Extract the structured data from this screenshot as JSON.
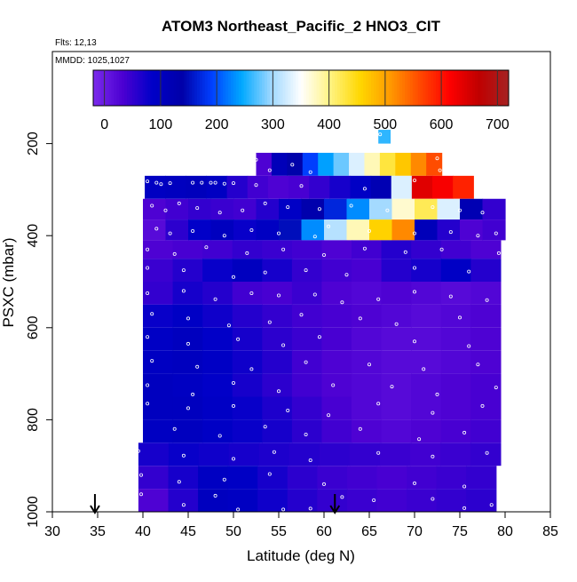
{
  "chart_data": {
    "type": "heatmap",
    "title": "ATOM3 Northeast_Pacific_2 HNO3_CIT",
    "subtitle_flights": "Flts: 12,13",
    "subtitle_dates": "MMDD: 1025,1027",
    "xlabel": "Latitude (deg N)",
    "ylabel": "PSXC (mbar)",
    "xlim": [
      30,
      85
    ],
    "ylim": [
      1000,
      0
    ],
    "x_ticks": [
      "30",
      "35",
      "40",
      "45",
      "50",
      "55",
      "60",
      "65",
      "70",
      "75",
      "80",
      "85"
    ],
    "y_ticks": [
      "200",
      "400",
      "600",
      "800",
      "1000"
    ],
    "colorbar": {
      "range": [
        -20,
        720
      ],
      "tick_labels": [
        "0",
        "100",
        "200",
        "300",
        "400",
        "500",
        "600",
        "700"
      ],
      "stops": [
        "#7B2BEB",
        "#4B00D2",
        "#0000C8",
        "#0000A8",
        "#0040FF",
        "#00A8FF",
        "#9FD8FF",
        "#FFFFFF",
        "#FFF380",
        "#FFD700",
        "#FF9A00",
        "#FF4A00",
        "#FF0000",
        "#C00000",
        "#A52222"
      ]
    },
    "arrows_latitude": [
      34.7,
      61.2
    ],
    "layers": [
      {
        "p_top": 170,
        "p_bot": 200,
        "x0": 66.0,
        "x1": 67.3,
        "values": [
          260
        ]
      },
      {
        "p_top": 220,
        "p_bot": 270,
        "x0": 52.5,
        "x1": 73.0,
        "values": [
          30,
          110,
          140,
          190,
          240,
          280,
          330,
          380,
          430,
          470,
          520,
          560
        ]
      },
      {
        "p_top": 270,
        "p_bot": 320,
        "x0": 40.2,
        "x1": 76.5,
        "values": [
          95,
          100,
          105,
          95,
          60,
          40,
          30,
          35,
          50,
          70,
          90,
          120,
          330,
          640,
          620,
          590
        ]
      },
      {
        "p_top": 320,
        "p_bot": 365,
        "x0": 40.0,
        "x1": 80.0,
        "values": [
          30,
          40,
          50,
          45,
          40,
          60,
          90,
          130,
          170,
          230,
          300,
          370,
          420,
          330,
          120,
          50
        ]
      },
      {
        "p_top": 365,
        "p_bot": 410,
        "x0": 40.0,
        "x1": 80.0,
        "values": [
          20,
          55,
          85,
          100,
          80,
          95,
          150,
          230,
          310,
          380,
          460,
          520,
          110,
          60,
          30,
          40
        ]
      },
      {
        "p_top": 410,
        "p_bot": 450,
        "x0": 40.0,
        "x1": 79.5,
        "values": [
          30,
          35,
          40,
          50,
          45,
          40,
          30,
          40,
          60,
          50,
          40,
          30
        ]
      },
      {
        "p_top": 450,
        "p_bot": 500,
        "x0": 40.0,
        "x1": 79.5,
        "values": [
          45,
          60,
          80,
          100,
          70,
          50,
          40,
          35,
          60,
          70,
          90,
          60
        ]
      },
      {
        "p_top": 500,
        "p_bot": 550,
        "x0": 40.0,
        "x1": 79.5,
        "values": [
          50,
          70,
          60,
          40,
          35,
          45,
          30,
          25,
          30,
          25,
          20,
          25
        ]
      },
      {
        "p_top": 550,
        "p_bot": 600,
        "x0": 40.0,
        "x1": 79.5,
        "values": [
          80,
          90,
          75,
          60,
          50,
          40,
          35,
          30,
          25,
          20,
          25,
          30
        ]
      },
      {
        "p_top": 600,
        "p_bot": 650,
        "x0": 40.0,
        "x1": 79.5,
        "values": [
          90,
          100,
          85,
          70,
          55,
          45,
          35,
          25,
          20,
          20,
          25,
          30
        ]
      },
      {
        "p_top": 650,
        "p_bot": 700,
        "x0": 40.0,
        "x1": 79.5,
        "values": [
          95,
          100,
          90,
          75,
          60,
          40,
          30,
          25,
          20,
          20,
          25,
          30
        ]
      },
      {
        "p_top": 700,
        "p_bot": 750,
        "x0": 40.0,
        "x1": 79.5,
        "values": [
          100,
          95,
          85,
          70,
          55,
          40,
          30,
          25,
          20,
          25,
          30,
          35
        ]
      },
      {
        "p_top": 750,
        "p_bot": 800,
        "x0": 40.0,
        "x1": 79.5,
        "values": [
          100,
          100,
          90,
          80,
          65,
          50,
          35,
          25,
          20,
          25,
          30,
          35
        ]
      },
      {
        "p_top": 800,
        "p_bot": 850,
        "x0": 40.0,
        "x1": 79.5,
        "values": [
          95,
          100,
          90,
          80,
          70,
          55,
          40,
          30,
          25,
          30,
          35,
          40
        ]
      },
      {
        "p_top": 850,
        "p_bot": 900,
        "x0": 39.5,
        "x1": 79.5,
        "values": [
          70,
          80,
          75,
          70,
          65,
          60,
          55,
          50,
          45,
          40,
          45,
          50
        ]
      },
      {
        "p_top": 900,
        "p_bot": 950,
        "x0": 39.5,
        "x1": 79.0,
        "values": [
          50,
          70,
          95,
          90,
          70,
          55,
          45,
          40,
          35,
          40,
          45,
          50
        ]
      },
      {
        "p_top": 950,
        "p_bot": 1000,
        "x0": 39.5,
        "x1": 79.0,
        "values": [
          30,
          60,
          100,
          95,
          75,
          60,
          50,
          45,
          40,
          45,
          50,
          55
        ]
      }
    ],
    "sample_points": [
      {
        "x": 66.2,
        "p": 180
      },
      {
        "x": 52.5,
        "p": 235
      },
      {
        "x": 54.0,
        "p": 258
      },
      {
        "x": 56.5,
        "p": 246
      },
      {
        "x": 58.5,
        "p": 262
      },
      {
        "x": 72.5,
        "p": 232
      },
      {
        "x": 72.8,
        "p": 258
      },
      {
        "x": 40.5,
        "p": 282
      },
      {
        "x": 41.5,
        "p": 285
      },
      {
        "x": 42.0,
        "p": 288
      },
      {
        "x": 43.0,
        "p": 286
      },
      {
        "x": 45.5,
        "p": 285
      },
      {
        "x": 46.5,
        "p": 285
      },
      {
        "x": 47.5,
        "p": 285
      },
      {
        "x": 48.0,
        "p": 285
      },
      {
        "x": 49.0,
        "p": 287
      },
      {
        "x": 50.0,
        "p": 286
      },
      {
        "x": 52.5,
        "p": 290
      },
      {
        "x": 57.5,
        "p": 292
      },
      {
        "x": 64.5,
        "p": 298
      },
      {
        "x": 70.0,
        "p": 280
      },
      {
        "x": 41.0,
        "p": 335
      },
      {
        "x": 42.5,
        "p": 345
      },
      {
        "x": 44.0,
        "p": 330
      },
      {
        "x": 46.0,
        "p": 340
      },
      {
        "x": 48.5,
        "p": 350
      },
      {
        "x": 51.0,
        "p": 345
      },
      {
        "x": 53.5,
        "p": 330
      },
      {
        "x": 56.0,
        "p": 338
      },
      {
        "x": 59.5,
        "p": 342
      },
      {
        "x": 63.0,
        "p": 335
      },
      {
        "x": 67.0,
        "p": 345
      },
      {
        "x": 72.0,
        "p": 338
      },
      {
        "x": 75.0,
        "p": 345
      },
      {
        "x": 77.5,
        "p": 350
      },
      {
        "x": 41.5,
        "p": 385
      },
      {
        "x": 43.0,
        "p": 395
      },
      {
        "x": 45.5,
        "p": 390
      },
      {
        "x": 49.0,
        "p": 400
      },
      {
        "x": 52.0,
        "p": 388
      },
      {
        "x": 55.0,
        "p": 395
      },
      {
        "x": 59.0,
        "p": 402
      },
      {
        "x": 60.5,
        "p": 380
      },
      {
        "x": 65.0,
        "p": 390
      },
      {
        "x": 70.0,
        "p": 395
      },
      {
        "x": 74.0,
        "p": 392
      },
      {
        "x": 77.0,
        "p": 400
      },
      {
        "x": 79.0,
        "p": 395
      },
      {
        "x": 40.5,
        "p": 430
      },
      {
        "x": 43.5,
        "p": 440
      },
      {
        "x": 47.0,
        "p": 425
      },
      {
        "x": 51.5,
        "p": 438
      },
      {
        "x": 55.5,
        "p": 430
      },
      {
        "x": 60.0,
        "p": 442
      },
      {
        "x": 64.5,
        "p": 428
      },
      {
        "x": 69.0,
        "p": 436
      },
      {
        "x": 73.0,
        "p": 430
      },
      {
        "x": 79.3,
        "p": 438
      },
      {
        "x": 40.5,
        "p": 470
      },
      {
        "x": 44.5,
        "p": 475
      },
      {
        "x": 50.0,
        "p": 490
      },
      {
        "x": 53.5,
        "p": 480
      },
      {
        "x": 58.0,
        "p": 475
      },
      {
        "x": 62.5,
        "p": 485
      },
      {
        "x": 70.0,
        "p": 470
      },
      {
        "x": 76.0,
        "p": 478
      },
      {
        "x": 40.5,
        "p": 525
      },
      {
        "x": 44.5,
        "p": 520
      },
      {
        "x": 48.0,
        "p": 538
      },
      {
        "x": 52.0,
        "p": 525
      },
      {
        "x": 55.0,
        "p": 530
      },
      {
        "x": 59.0,
        "p": 528
      },
      {
        "x": 62.0,
        "p": 545
      },
      {
        "x": 66.0,
        "p": 538
      },
      {
        "x": 70.0,
        "p": 522
      },
      {
        "x": 74.0,
        "p": 532
      },
      {
        "x": 78.0,
        "p": 540
      },
      {
        "x": 41.0,
        "p": 570
      },
      {
        "x": 45.0,
        "p": 580
      },
      {
        "x": 49.5,
        "p": 595
      },
      {
        "x": 54.0,
        "p": 588
      },
      {
        "x": 57.5,
        "p": 572
      },
      {
        "x": 64.0,
        "p": 580
      },
      {
        "x": 68.0,
        "p": 592
      },
      {
        "x": 75.0,
        "p": 578
      },
      {
        "x": 40.5,
        "p": 620
      },
      {
        "x": 45.0,
        "p": 635
      },
      {
        "x": 50.5,
        "p": 625
      },
      {
        "x": 55.5,
        "p": 638
      },
      {
        "x": 59.5,
        "p": 620
      },
      {
        "x": 70.0,
        "p": 630
      },
      {
        "x": 76.0,
        "p": 640
      },
      {
        "x": 41.0,
        "p": 672
      },
      {
        "x": 46.0,
        "p": 685
      },
      {
        "x": 52.0,
        "p": 690
      },
      {
        "x": 58.0,
        "p": 675
      },
      {
        "x": 65.0,
        "p": 680
      },
      {
        "x": 71.0,
        "p": 690
      },
      {
        "x": 77.0,
        "p": 680
      },
      {
        "x": 40.5,
        "p": 725
      },
      {
        "x": 45.5,
        "p": 745
      },
      {
        "x": 50.0,
        "p": 720
      },
      {
        "x": 55.0,
        "p": 738
      },
      {
        "x": 61.0,
        "p": 725
      },
      {
        "x": 67.5,
        "p": 728
      },
      {
        "x": 72.5,
        "p": 745
      },
      {
        "x": 79.0,
        "p": 730
      },
      {
        "x": 40.5,
        "p": 765
      },
      {
        "x": 45.0,
        "p": 775
      },
      {
        "x": 50.0,
        "p": 770
      },
      {
        "x": 56.0,
        "p": 780
      },
      {
        "x": 60.5,
        "p": 790
      },
      {
        "x": 66.0,
        "p": 765
      },
      {
        "x": 72.0,
        "p": 785
      },
      {
        "x": 77.5,
        "p": 770
      },
      {
        "x": 43.5,
        "p": 820
      },
      {
        "x": 48.5,
        "p": 835
      },
      {
        "x": 53.5,
        "p": 815
      },
      {
        "x": 58.0,
        "p": 832
      },
      {
        "x": 64.0,
        "p": 820
      },
      {
        "x": 70.5,
        "p": 842
      },
      {
        "x": 75.5,
        "p": 828
      },
      {
        "x": 39.5,
        "p": 868
      },
      {
        "x": 44.5,
        "p": 878
      },
      {
        "x": 50.0,
        "p": 885
      },
      {
        "x": 54.5,
        "p": 870
      },
      {
        "x": 58.5,
        "p": 888
      },
      {
        "x": 66.0,
        "p": 872
      },
      {
        "x": 72.0,
        "p": 880
      },
      {
        "x": 78.0,
        "p": 872
      },
      {
        "x": 39.8,
        "p": 920
      },
      {
        "x": 44.0,
        "p": 935
      },
      {
        "x": 49.0,
        "p": 930
      },
      {
        "x": 54.0,
        "p": 918
      },
      {
        "x": 60.0,
        "p": 940
      },
      {
        "x": 70.0,
        "p": 938
      },
      {
        "x": 75.5,
        "p": 945
      },
      {
        "x": 39.8,
        "p": 962
      },
      {
        "x": 44.5,
        "p": 985
      },
      {
        "x": 48.0,
        "p": 965
      },
      {
        "x": 50.5,
        "p": 995
      },
      {
        "x": 55.5,
        "p": 995
      },
      {
        "x": 58.5,
        "p": 993
      },
      {
        "x": 62.0,
        "p": 968
      },
      {
        "x": 65.5,
        "p": 975
      },
      {
        "x": 72.0,
        "p": 972
      },
      {
        "x": 75.5,
        "p": 992
      },
      {
        "x": 78.5,
        "p": 985
      }
    ]
  }
}
